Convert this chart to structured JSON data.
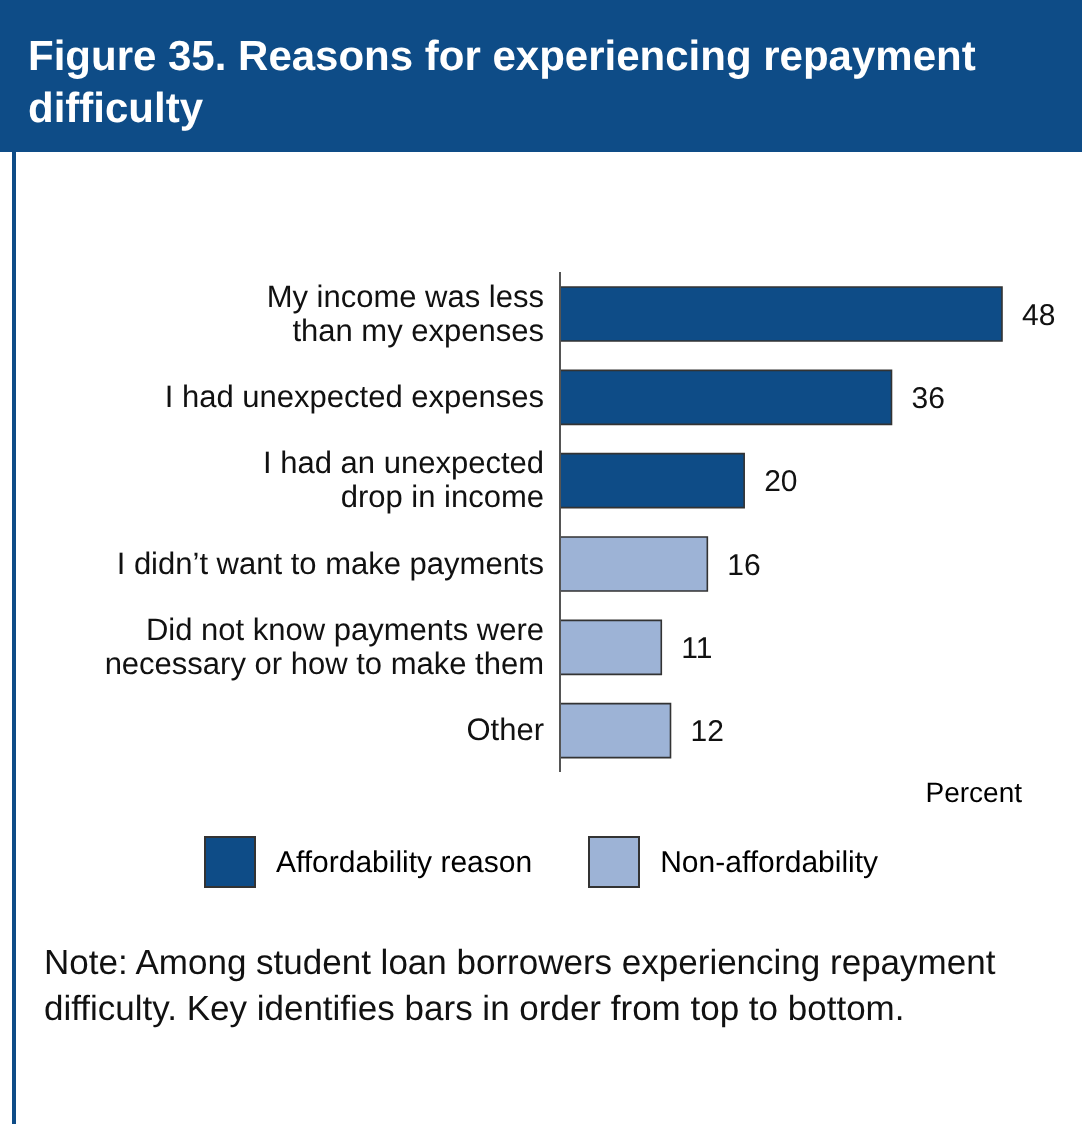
{
  "chart_data": {
    "type": "bar",
    "orientation": "horizontal",
    "stacked": true,
    "title": "Figure 35. Reasons for experiencing repayment difficulty",
    "xlabel": "Percent",
    "categories": [
      "My income was less than my expenses",
      "I had unexpected expenses",
      "I had an unexpected drop in income",
      "I didn’t want to make payments",
      "Did not know payments were necessary or how to make them",
      "Other"
    ],
    "series": [
      {
        "name": "Affordability reason",
        "color": "#0e4c87",
        "values": [
          48,
          36,
          20,
          null,
          null,
          null
        ]
      },
      {
        "name": "Non-affordability",
        "color": "#9db3d6",
        "values": [
          null,
          null,
          null,
          16,
          11,
          12
        ]
      }
    ],
    "data_labels": true,
    "legend": "bottom",
    "grid": false,
    "annotations": [
      "Note: Among student loan borrowers experiencing repayment difficulty. Key identifies bars in order from top to bottom."
    ]
  }
}
